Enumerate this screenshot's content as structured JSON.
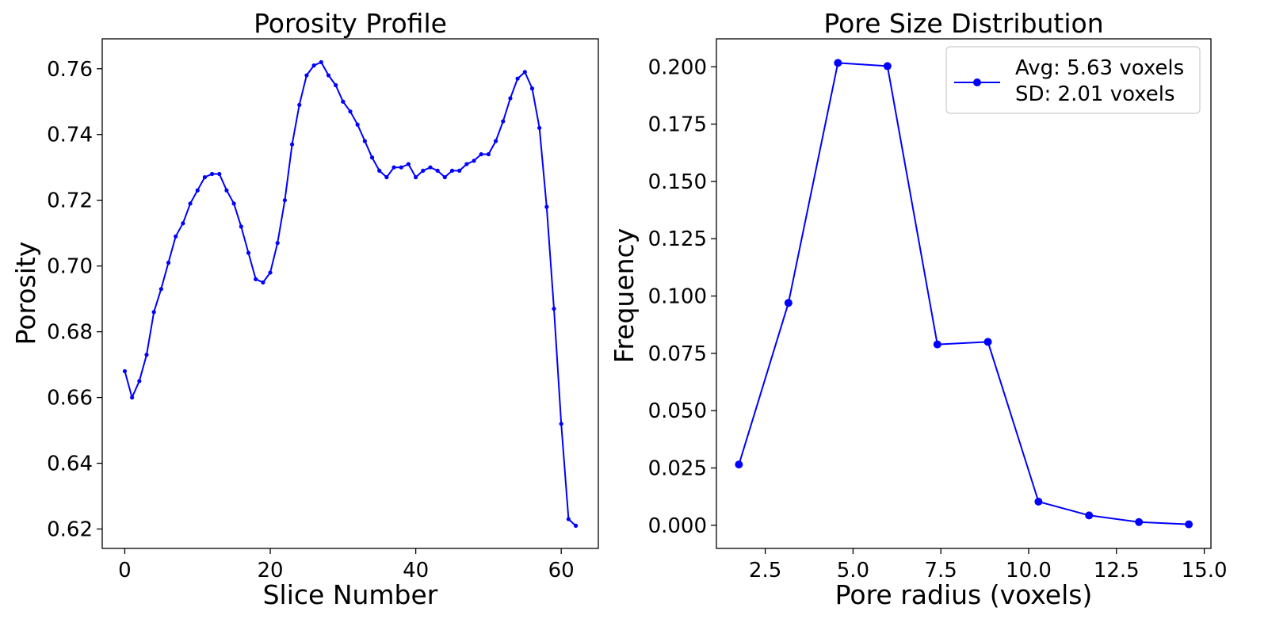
{
  "chart_data": [
    {
      "type": "line",
      "title": "Porosity Profile",
      "xlabel": "Slice Number",
      "ylabel": "Porosity",
      "xlim": [
        -3.1,
        65.1
      ],
      "ylim": [
        0.6141,
        0.7691
      ],
      "xticks": [
        0,
        20,
        40,
        60
      ],
      "xtick_labels": [
        "0",
        "20",
        "40",
        "60"
      ],
      "yticks": [
        0.62,
        0.64,
        0.66,
        0.68,
        0.7,
        0.72,
        0.74,
        0.76
      ],
      "ytick_labels": [
        "0.62",
        "0.64",
        "0.66",
        "0.68",
        "0.70",
        "0.72",
        "0.74",
        "0.76"
      ],
      "grid": false,
      "color": "#0000ff",
      "marker": "small-dot",
      "series": [
        {
          "x": [
            0,
            1,
            2,
            3,
            4,
            5,
            6,
            7,
            8,
            9,
            10,
            11,
            12,
            13,
            14,
            15,
            16,
            17,
            18,
            19,
            20,
            21,
            22,
            23,
            24,
            25,
            26,
            27,
            28,
            29,
            30,
            31,
            32,
            33,
            34,
            35,
            36,
            37,
            38,
            39,
            40,
            41,
            42,
            43,
            44,
            45,
            46,
            47,
            48,
            49,
            50,
            51,
            52,
            53,
            54,
            55,
            56,
            57,
            58,
            59,
            60,
            61,
            62
          ],
          "values": [
            0.668,
            0.66,
            0.665,
            0.673,
            0.686,
            0.693,
            0.701,
            0.709,
            0.713,
            0.719,
            0.723,
            0.727,
            0.728,
            0.728,
            0.723,
            0.719,
            0.712,
            0.704,
            0.696,
            0.695,
            0.698,
            0.707,
            0.72,
            0.737,
            0.749,
            0.758,
            0.761,
            0.762,
            0.758,
            0.755,
            0.75,
            0.747,
            0.743,
            0.738,
            0.733,
            0.729,
            0.727,
            0.73,
            0.73,
            0.731,
            0.727,
            0.729,
            0.73,
            0.729,
            0.727,
            0.729,
            0.729,
            0.731,
            0.732,
            0.734,
            0.734,
            0.738,
            0.744,
            0.751,
            0.757,
            0.759,
            0.754,
            0.742,
            0.718,
            0.687,
            0.652,
            0.623,
            0.621
          ]
        }
      ]
    },
    {
      "type": "line",
      "title": "Pore Size Distribution",
      "xlabel": "Pore radius (voxels)",
      "ylabel": "Frequency",
      "xlim": [
        1.11,
        15.19
      ],
      "ylim": [
        -0.0101,
        0.2122
      ],
      "xticks": [
        2.5,
        5.0,
        7.5,
        10.0,
        12.5,
        15.0
      ],
      "xtick_labels": [
        "2.5",
        "5.0",
        "7.5",
        "10.0",
        "12.5",
        "15.0"
      ],
      "yticks": [
        0.0,
        0.025,
        0.05,
        0.075,
        0.1,
        0.125,
        0.15,
        0.175,
        0.2
      ],
      "ytick_labels": [
        "0.000",
        "0.025",
        "0.050",
        "0.075",
        "0.100",
        "0.125",
        "0.150",
        "0.175",
        "0.200"
      ],
      "grid": false,
      "color": "#0000ff",
      "marker": "dot",
      "legend_placement": "top-right",
      "legend_lines": [
        "Avg: 5.63 voxels",
        "SD: 2.01 voxels"
      ],
      "series": [
        {
          "x": [
            1.75,
            3.16,
            4.57,
            5.98,
            7.4,
            8.84,
            10.28,
            11.72,
            13.14,
            14.56
          ],
          "values": [
            0.0265,
            0.097,
            0.2017,
            0.2003,
            0.0789,
            0.08,
            0.0103,
            0.0043,
            0.0014,
            0.0004
          ]
        }
      ]
    }
  ]
}
